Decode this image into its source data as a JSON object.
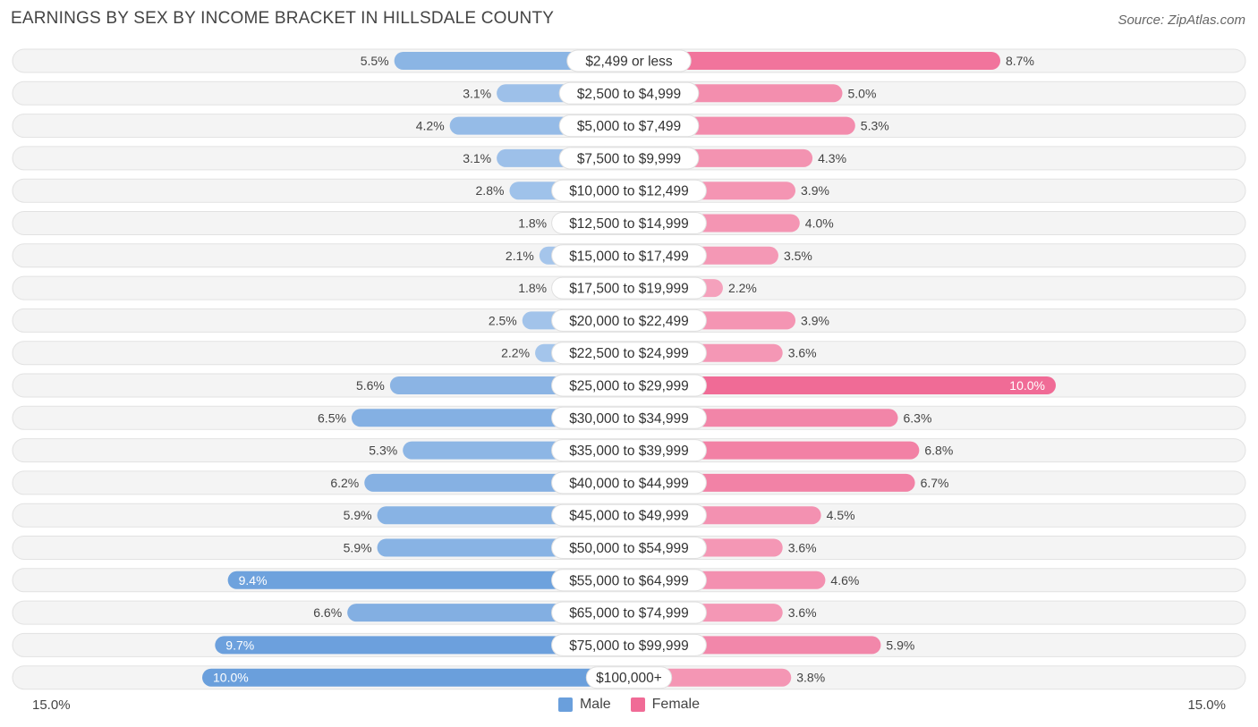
{
  "title": "EARNINGS BY SEX BY INCOME BRACKET IN HILLSDALE COUNTY",
  "source": "Source: ZipAtlas.com",
  "legend": {
    "male": "Male",
    "female": "Female"
  },
  "axis": {
    "left_label": "15.0%",
    "right_label": "15.0%"
  },
  "colors": {
    "male_light": "#a9c8ec",
    "male_dark": "#6a9fdc",
    "female_light": "#f5a6bf",
    "female_dark": "#f06b96",
    "row_bg": "#eeeeee"
  },
  "chart_data": {
    "type": "bar",
    "orientation": "horizontal-diverging",
    "max": 15.0,
    "categories": [
      "$2,499 or less",
      "$2,500 to $4,999",
      "$5,000 to $7,499",
      "$7,500 to $9,999",
      "$10,000 to $12,499",
      "$12,500 to $14,999",
      "$15,000 to $17,499",
      "$17,500 to $19,999",
      "$20,000 to $22,499",
      "$22,500 to $24,999",
      "$25,000 to $29,999",
      "$30,000 to $34,999",
      "$35,000 to $39,999",
      "$40,000 to $44,999",
      "$45,000 to $49,999",
      "$50,000 to $54,999",
      "$55,000 to $64,999",
      "$65,000 to $74,999",
      "$75,000 to $99,999",
      "$100,000+"
    ],
    "series": [
      {
        "name": "Male",
        "values": [
          5.5,
          3.1,
          4.2,
          3.1,
          2.8,
          1.8,
          2.1,
          1.8,
          2.5,
          2.2,
          5.6,
          6.5,
          5.3,
          6.2,
          5.9,
          5.9,
          9.4,
          6.6,
          9.7,
          10.0
        ],
        "labels": [
          "5.5%",
          "3.1%",
          "4.2%",
          "3.1%",
          "2.8%",
          "1.8%",
          "2.1%",
          "1.8%",
          "2.5%",
          "2.2%",
          "5.6%",
          "6.5%",
          "5.3%",
          "6.2%",
          "5.9%",
          "5.9%",
          "9.4%",
          "6.6%",
          "9.7%",
          "10.0%"
        ]
      },
      {
        "name": "Female",
        "values": [
          8.7,
          5.0,
          5.3,
          4.3,
          3.9,
          4.0,
          3.5,
          2.2,
          3.9,
          3.6,
          10.0,
          6.3,
          6.8,
          6.7,
          4.5,
          3.6,
          4.6,
          3.6,
          5.9,
          3.8
        ],
        "labels": [
          "8.7%",
          "5.0%",
          "5.3%",
          "4.3%",
          "3.9%",
          "4.0%",
          "3.5%",
          "2.2%",
          "3.9%",
          "3.6%",
          "10.0%",
          "6.3%",
          "6.8%",
          "6.7%",
          "4.5%",
          "3.6%",
          "4.6%",
          "3.6%",
          "5.9%",
          "3.8%"
        ]
      }
    ]
  }
}
